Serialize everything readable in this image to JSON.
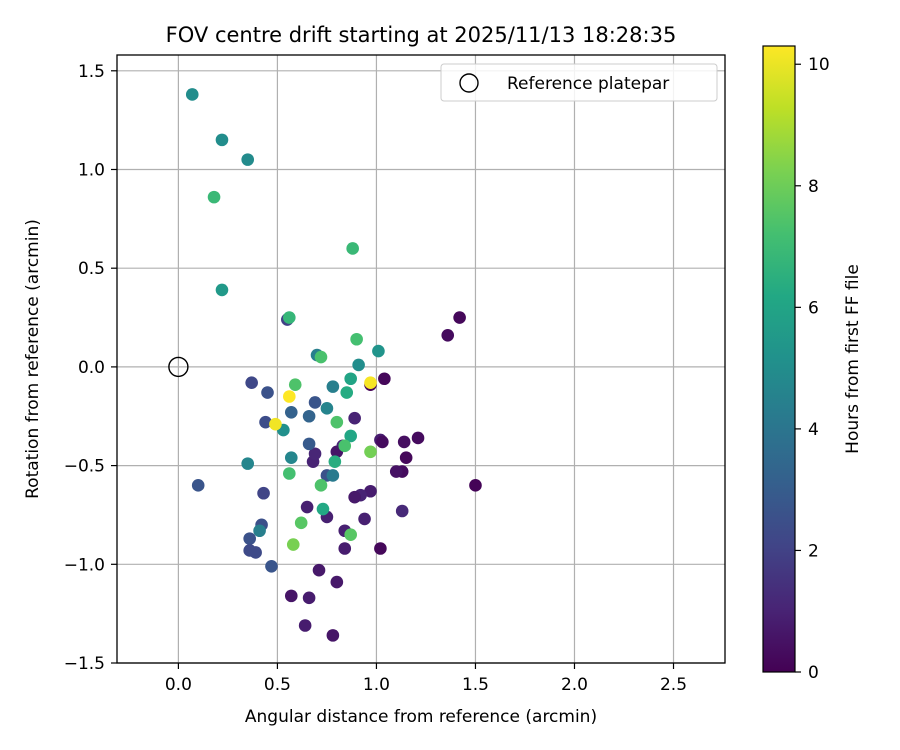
{
  "chart_data": {
    "type": "scatter",
    "title": "FOV centre drift starting at 2025/11/13 18:28:35",
    "xlabel": "Angular distance from reference (arcmin)",
    "ylabel": "Rotation from reference (arcmin)",
    "xlim": [
      -0.31,
      2.76
    ],
    "ylim": [
      -1.5,
      1.58
    ],
    "xticks": [
      0.0,
      0.5,
      1.0,
      1.5,
      2.0,
      2.5
    ],
    "xtick_labels": [
      "0.0",
      "0.5",
      "1.0",
      "1.5",
      "2.0",
      "2.5"
    ],
    "yticks": [
      -1.5,
      -1.0,
      -0.5,
      0.0,
      0.5,
      1.0,
      1.5
    ],
    "ytick_labels": [
      "−1.5",
      "−1.0",
      "−0.5",
      "0.0",
      "0.5",
      "1.0",
      "1.5"
    ],
    "grid": true,
    "legend": {
      "position": "top-right",
      "label": "Reference platepar"
    },
    "reference_point": {
      "x": 0.0,
      "y": 0.0
    },
    "colorbar": {
      "label": "Hours from first FF file",
      "min": 0,
      "max": 10.3,
      "ticks": [
        0,
        2,
        4,
        6,
        8,
        10
      ],
      "tick_labels": [
        "0",
        "2",
        "4",
        "6",
        "8",
        "10"
      ],
      "colormap": "viridis"
    },
    "points": [
      {
        "x": 1.42,
        "y": 0.25,
        "c": 0.2
      },
      {
        "x": 1.36,
        "y": 0.16,
        "c": 0.3
      },
      {
        "x": 1.5,
        "y": -0.6,
        "c": 0.1
      },
      {
        "x": 1.21,
        "y": -0.36,
        "c": 0.3
      },
      {
        "x": 1.14,
        "y": -0.38,
        "c": 0.4
      },
      {
        "x": 1.15,
        "y": -0.46,
        "c": 0.2
      },
      {
        "x": 1.13,
        "y": -0.53,
        "c": 0.3
      },
      {
        "x": 1.1,
        "y": -0.53,
        "c": 0.5
      },
      {
        "x": 1.13,
        "y": -0.73,
        "c": 1.2
      },
      {
        "x": 1.04,
        "y": -0.06,
        "c": 0.2
      },
      {
        "x": 0.97,
        "y": -0.09,
        "c": 0.1
      },
      {
        "x": 1.02,
        "y": -0.37,
        "c": 0.8
      },
      {
        "x": 1.03,
        "y": -0.38,
        "c": 0.3
      },
      {
        "x": 1.02,
        "y": -0.92,
        "c": 0.2
      },
      {
        "x": 0.97,
        "y": -0.63,
        "c": 0.8
      },
      {
        "x": 0.92,
        "y": -0.65,
        "c": 1.0
      },
      {
        "x": 0.89,
        "y": -0.66,
        "c": 0.7
      },
      {
        "x": 0.94,
        "y": -0.77,
        "c": 0.9
      },
      {
        "x": 0.89,
        "y": -0.26,
        "c": 1.0
      },
      {
        "x": 0.83,
        "y": -0.4,
        "c": 1.1
      },
      {
        "x": 0.8,
        "y": -0.43,
        "c": 0.6
      },
      {
        "x": 0.84,
        "y": -0.83,
        "c": 0.9
      },
      {
        "x": 0.84,
        "y": -0.92,
        "c": 0.8
      },
      {
        "x": 0.8,
        "y": -1.09,
        "c": 0.7
      },
      {
        "x": 0.78,
        "y": -1.36,
        "c": 0.6
      },
      {
        "x": 0.71,
        "y": -1.03,
        "c": 0.7
      },
      {
        "x": 0.75,
        "y": -0.76,
        "c": 0.9
      },
      {
        "x": 0.65,
        "y": -0.71,
        "c": 0.9
      },
      {
        "x": 0.68,
        "y": -0.48,
        "c": 1.0
      },
      {
        "x": 0.69,
        "y": -0.44,
        "c": 1.1
      },
      {
        "x": 0.75,
        "y": -0.55,
        "c": 2.6
      },
      {
        "x": 0.64,
        "y": -1.31,
        "c": 0.8
      },
      {
        "x": 0.66,
        "y": -1.17,
        "c": 0.8
      },
      {
        "x": 0.57,
        "y": -1.16,
        "c": 0.6
      },
      {
        "x": 0.55,
        "y": 0.24,
        "c": 2.0
      },
      {
        "x": 0.37,
        "y": -0.08,
        "c": 2.2
      },
      {
        "x": 0.45,
        "y": -0.13,
        "c": 2.6
      },
      {
        "x": 0.44,
        "y": -0.28,
        "c": 2.4
      },
      {
        "x": 0.57,
        "y": -0.23,
        "c": 3.2
      },
      {
        "x": 0.69,
        "y": -0.18,
        "c": 2.7
      },
      {
        "x": 0.66,
        "y": -0.25,
        "c": 3.3
      },
      {
        "x": 0.66,
        "y": -0.39,
        "c": 2.9
      },
      {
        "x": 0.43,
        "y": -0.64,
        "c": 2.1
      },
      {
        "x": 0.42,
        "y": -0.8,
        "c": 2.5
      },
      {
        "x": 0.36,
        "y": -0.87,
        "c": 2.6
      },
      {
        "x": 0.36,
        "y": -0.93,
        "c": 2.3
      },
      {
        "x": 0.39,
        "y": -0.94,
        "c": 2.3
      },
      {
        "x": 0.47,
        "y": -1.01,
        "c": 2.7
      },
      {
        "x": 0.1,
        "y": -0.6,
        "c": 2.7
      },
      {
        "x": 0.78,
        "y": -0.1,
        "c": 4.4
      },
      {
        "x": 0.75,
        "y": -0.21,
        "c": 4.6
      },
      {
        "x": 0.78,
        "y": -0.55,
        "c": 4.2
      },
      {
        "x": 0.41,
        "y": -0.83,
        "c": 4.4
      },
      {
        "x": 0.35,
        "y": -0.49,
        "c": 4.7
      },
      {
        "x": 0.53,
        "y": -0.32,
        "c": 5.1
      },
      {
        "x": 0.57,
        "y": -0.46,
        "c": 4.7
      },
      {
        "x": 0.7,
        "y": 0.06,
        "c": 4.4
      },
      {
        "x": 0.91,
        "y": 0.01,
        "c": 5.0
      },
      {
        "x": 1.01,
        "y": 0.08,
        "c": 5.3
      },
      {
        "x": 0.07,
        "y": 1.38,
        "c": 5.0
      },
      {
        "x": 0.22,
        "y": 1.15,
        "c": 5.0
      },
      {
        "x": 0.35,
        "y": 1.05,
        "c": 4.9
      },
      {
        "x": 0.22,
        "y": 0.39,
        "c": 5.5
      },
      {
        "x": 0.87,
        "y": -0.06,
        "c": 6.0
      },
      {
        "x": 0.85,
        "y": -0.13,
        "c": 6.3
      },
      {
        "x": 0.87,
        "y": -0.35,
        "c": 6.1
      },
      {
        "x": 0.79,
        "y": -0.48,
        "c": 6.4
      },
      {
        "x": 0.73,
        "y": -0.72,
        "c": 6.2
      },
      {
        "x": 0.56,
        "y": 0.25,
        "c": 6.8
      },
      {
        "x": 0.72,
        "y": 0.05,
        "c": 7.3
      },
      {
        "x": 0.18,
        "y": 0.86,
        "c": 6.9
      },
      {
        "x": 0.88,
        "y": 0.6,
        "c": 6.9
      },
      {
        "x": 0.9,
        "y": 0.14,
        "c": 7.2
      },
      {
        "x": 0.59,
        "y": -0.09,
        "c": 7.4
      },
      {
        "x": 0.8,
        "y": -0.28,
        "c": 7.4
      },
      {
        "x": 0.84,
        "y": -0.4,
        "c": 7.3
      },
      {
        "x": 0.56,
        "y": -0.54,
        "c": 7.2
      },
      {
        "x": 0.72,
        "y": -0.6,
        "c": 7.4
      },
      {
        "x": 0.62,
        "y": -0.79,
        "c": 7.6
      },
      {
        "x": 0.87,
        "y": -0.85,
        "c": 7.6
      },
      {
        "x": 0.58,
        "y": -0.9,
        "c": 8.2
      },
      {
        "x": 0.97,
        "y": -0.43,
        "c": 8.1
      },
      {
        "x": 0.56,
        "y": -0.15,
        "c": 10.3
      },
      {
        "x": 0.49,
        "y": -0.29,
        "c": 10.1
      },
      {
        "x": 0.97,
        "y": -0.08,
        "c": 10.2
      }
    ]
  }
}
